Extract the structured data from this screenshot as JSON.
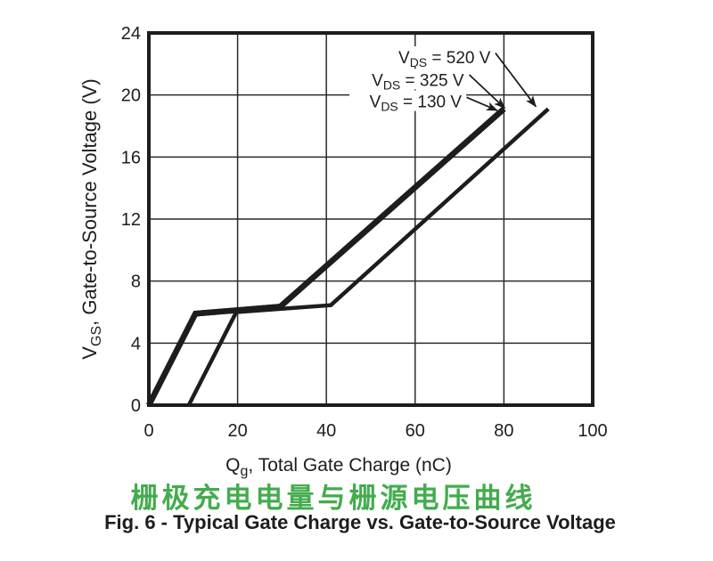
{
  "colors": {
    "ink": "#1d1d1b",
    "grid": "#2a2a28",
    "accent_green": "#43ac4d",
    "background": "#ffffff"
  },
  "chart_data": {
    "type": "line",
    "title_cn": "栅极充电电量与栅源电压曲线",
    "caption": "Fig. 6 - Typical Gate Charge vs. Gate-to-Source Voltage",
    "xlabel": {
      "main": "Q",
      "sub": "g",
      "rest": ", Total Gate Charge (nC)"
    },
    "ylabel": {
      "main": "V",
      "sub": "GS",
      "rest": ", Gate-to-Source Voltage (V)"
    },
    "xlim": [
      0,
      100
    ],
    "ylim": [
      0,
      24
    ],
    "xticks": [
      0,
      20,
      40,
      60,
      80,
      100
    ],
    "yticks": [
      0,
      4,
      8,
      12,
      16,
      20,
      24
    ],
    "grid": true,
    "legend_position": "none",
    "series": [
      {
        "name": "VDS = 520 V",
        "points": [
          [
            9,
            0
          ],
          [
            19.7,
            6.0
          ],
          [
            41,
            6.45
          ],
          [
            90,
            19.1
          ]
        ],
        "stroke": "normal"
      },
      {
        "name": "VDS = 325 V",
        "points": [
          [
            0,
            0
          ],
          [
            10.5,
            5.9
          ],
          [
            29.6,
            6.35
          ],
          [
            80,
            19.1
          ]
        ],
        "stroke": "thick"
      },
      {
        "name": "VDS = 130 V",
        "points": [
          [
            0,
            0
          ],
          [
            10.5,
            5.9
          ],
          [
            29.6,
            6.35
          ],
          [
            80,
            19.1
          ]
        ],
        "stroke": "thick"
      }
    ],
    "annotations": [
      {
        "id": "vds-520",
        "label": {
          "main": "V",
          "sub": "DS",
          "rest": " = 520 V"
        },
        "text_xy": [
          77.0,
          22.45
        ],
        "arrow": [
          [
            78.1,
            22.7
          ],
          [
            87.2,
            19.25
          ]
        ]
      },
      {
        "id": "vds-325",
        "label": {
          "main": "V",
          "sub": "DS",
          "rest": " = 325 V"
        },
        "text_xy": [
          71.0,
          21.0
        ],
        "arrow": [
          [
            72.2,
            21.3
          ],
          [
            80.2,
            19.15
          ]
        ]
      },
      {
        "id": "vds-130",
        "label": {
          "main": "V",
          "sub": "DS",
          "rest": " = 130 V"
        },
        "text_xy": [
          70.5,
          19.6
        ],
        "arrow": [
          [
            71.6,
            19.85
          ],
          [
            78.5,
            19.0
          ]
        ]
      }
    ]
  }
}
